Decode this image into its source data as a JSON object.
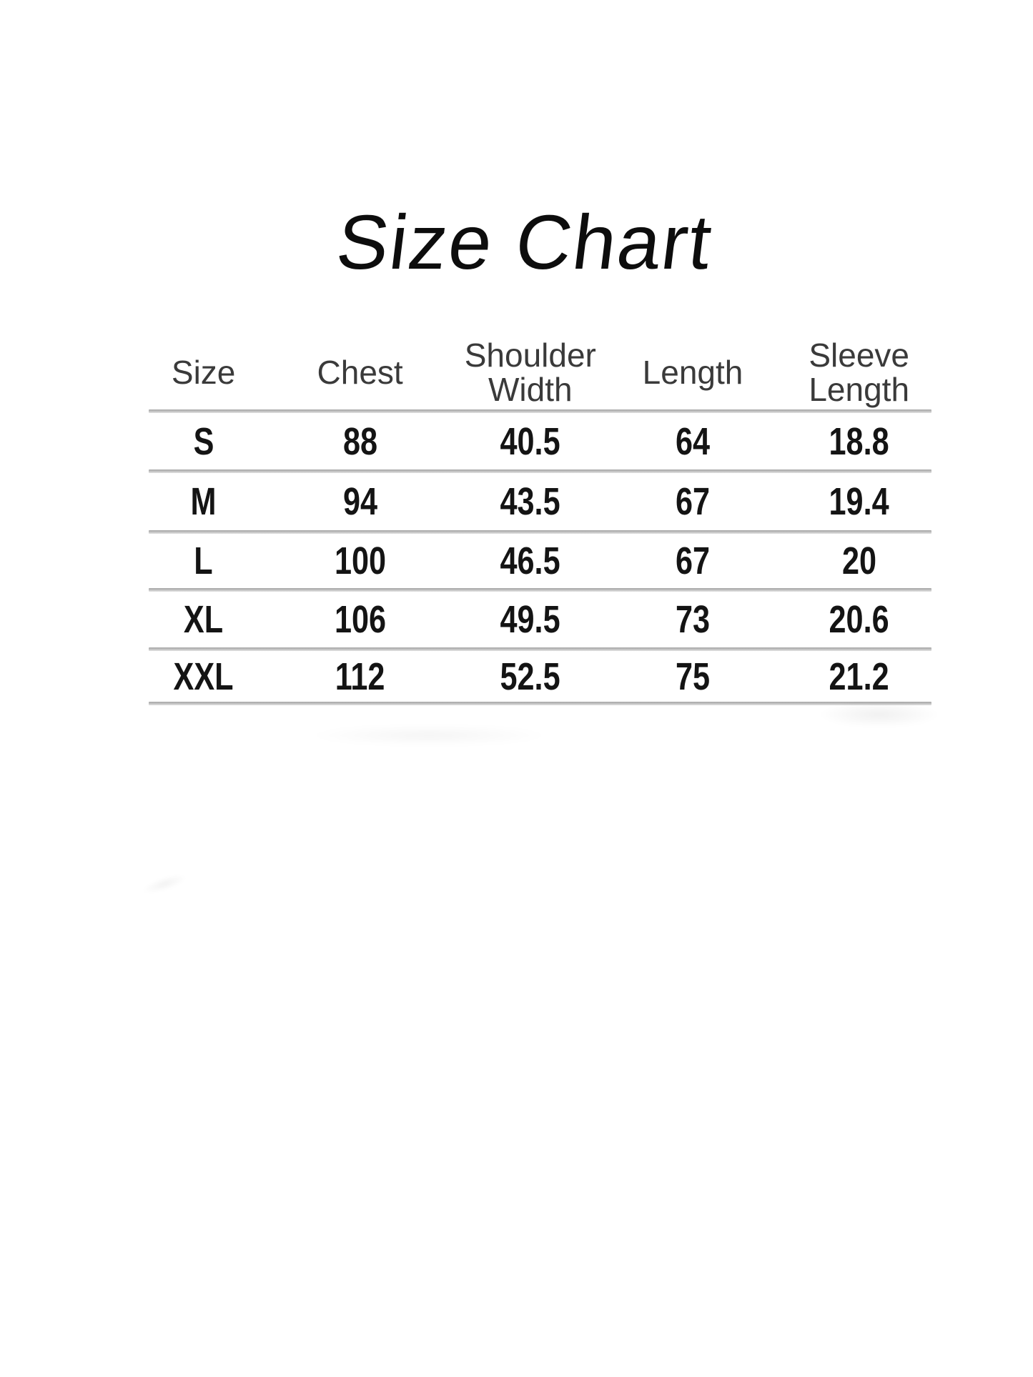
{
  "title": "Size Chart",
  "chart_data": {
    "type": "table",
    "title": "Size Chart",
    "columns": [
      "Size",
      "Chest",
      "Shoulder Width",
      "Length",
      "Sleeve Length"
    ],
    "rows": [
      [
        "S",
        "88",
        "40.5",
        "64",
        "18.8"
      ],
      [
        "M",
        "94",
        "43.5",
        "67",
        "19.4"
      ],
      [
        "L",
        "100",
        "46.5",
        "67",
        "20"
      ],
      [
        "XL",
        "106",
        "49.5",
        "73",
        "20.6"
      ],
      [
        "XXL",
        "112",
        "52.5",
        "75",
        "21.2"
      ]
    ],
    "layout": {
      "grid": "horizontal-rules-only",
      "legend": "none"
    }
  },
  "colors": {
    "background": "#ffffff",
    "title_text": "#0d0d0d",
    "header_text": "#3a3a3a",
    "cell_text": "#141414",
    "divider": "#a6a6a6"
  }
}
